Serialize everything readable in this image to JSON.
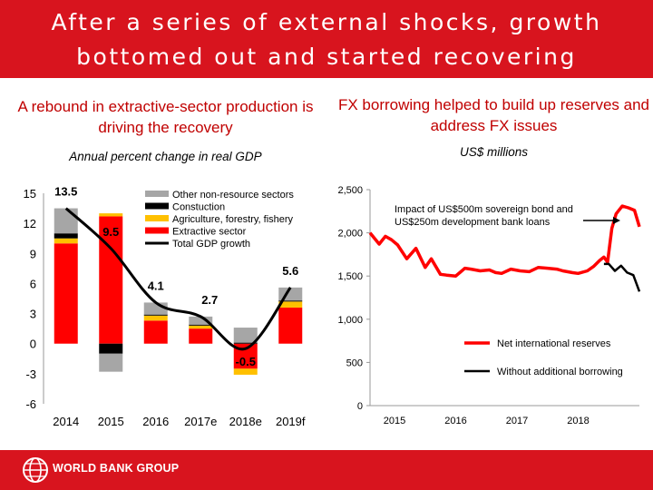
{
  "slide": {
    "title": "After a series of external shocks, growth\nbottomed out and started recovering",
    "left_subtitle": "A rebound in extractive-sector production is driving the recovery",
    "left_units": "Annual percent change in real GDP",
    "right_subtitle": "FX borrowing helped to build up reserves and address FX issues",
    "right_units": "US$ millions",
    "footer_text": "WORLD BANK GROUP",
    "colors": {
      "brand_red": "#d8141e",
      "subtitle_red": "#c00000",
      "extractive": "#ff0000",
      "agriculture": "#ffc000",
      "construction": "#000000",
      "other": "#a6a6a6",
      "line": "#000000"
    }
  },
  "chart_data": [
    {
      "type": "bar",
      "stacked": true,
      "title": "A rebound in extractive-sector production is driving the recovery",
      "ylabel": "Annual percent change in real GDP",
      "categories": [
        "2014",
        "2015",
        "2016",
        "2017e",
        "2018e",
        "2019f"
      ],
      "ylim": [
        -6,
        15
      ],
      "yticks": [
        15,
        12,
        9,
        6,
        3,
        0,
        -3,
        -6
      ],
      "series": [
        {
          "name": "Other non-resource sectors",
          "values": [
            2.5,
            -1.8,
            1.2,
            0.8,
            1.5,
            1.3
          ],
          "color": "#a6a6a6"
        },
        {
          "name": "Constuction",
          "values": [
            0.5,
            -1.0,
            0.1,
            0.1,
            0.1,
            0.1
          ],
          "color": "#000000"
        },
        {
          "name": "Agriculture, forestry, fishery",
          "values": [
            0.5,
            0.3,
            0.5,
            0.3,
            -0.6,
            0.6
          ],
          "color": "#ffc000"
        },
        {
          "name": "Extractive sector",
          "values": [
            10.0,
            12.7,
            2.3,
            1.5,
            -2.5,
            3.6
          ],
          "color": "#ff0000"
        }
      ],
      "total_line": {
        "name": "Total GDP growth",
        "values": [
          13.5,
          9.5,
          4.1,
          2.7,
          -0.5,
          5.6
        ],
        "labels": [
          "13.5",
          "9.5",
          "4.1",
          "2.7",
          "-0.5",
          "5.6"
        ]
      },
      "legend_position": "top-right"
    },
    {
      "type": "line",
      "title": "FX borrowing helped to build up reserves and address FX issues",
      "ylabel": "US$ millions",
      "ylim": [
        0,
        2500
      ],
      "yticks": [
        "0",
        "500",
        "1,000",
        "1,500",
        "2,000",
        "2,500"
      ],
      "ytick_values": [
        0,
        500,
        1000,
        1500,
        2000,
        2500
      ],
      "xlim": [
        2014.6,
        2019.0
      ],
      "xticks": [
        "2015",
        "2016",
        "2017",
        "2018"
      ],
      "xtick_values": [
        2015.0,
        2016.0,
        2017.0,
        2018.0
      ],
      "series": [
        {
          "name": "Net international reserves",
          "color": "#ff0000",
          "x": [
            2014.6,
            2014.75,
            2014.85,
            2014.95,
            2015.05,
            2015.2,
            2015.35,
            2015.5,
            2015.6,
            2015.75,
            2015.85,
            2016.0,
            2016.15,
            2016.25,
            2016.4,
            2016.55,
            2016.65,
            2016.75,
            2016.9,
            2017.05,
            2017.2,
            2017.35,
            2017.5,
            2017.65,
            2017.75,
            2017.9,
            2018.0,
            2018.15,
            2018.25,
            2018.35,
            2018.42,
            2018.48,
            2018.55,
            2018.62,
            2018.72,
            2018.82,
            2018.92,
            2019.0
          ],
          "y": [
            2000,
            1870,
            1960,
            1920,
            1860,
            1700,
            1820,
            1600,
            1700,
            1520,
            1510,
            1500,
            1590,
            1580,
            1560,
            1570,
            1540,
            1530,
            1580,
            1560,
            1550,
            1600,
            1590,
            1580,
            1560,
            1540,
            1530,
            1560,
            1610,
            1680,
            1720,
            1660,
            2050,
            2220,
            2310,
            2290,
            2260,
            2070
          ]
        },
        {
          "name": "Without additional borrowing",
          "color": "#000000",
          "x": [
            2018.42,
            2018.5,
            2018.6,
            2018.7,
            2018.8,
            2018.9,
            2019.0
          ],
          "y": [
            1640,
            1640,
            1560,
            1620,
            1540,
            1510,
            1320
          ]
        }
      ],
      "annotation": {
        "text": [
          "Impact of US$500m sovereign bond and",
          "US$250m development bank loans"
        ]
      },
      "legend_position": "bottom-right"
    }
  ]
}
